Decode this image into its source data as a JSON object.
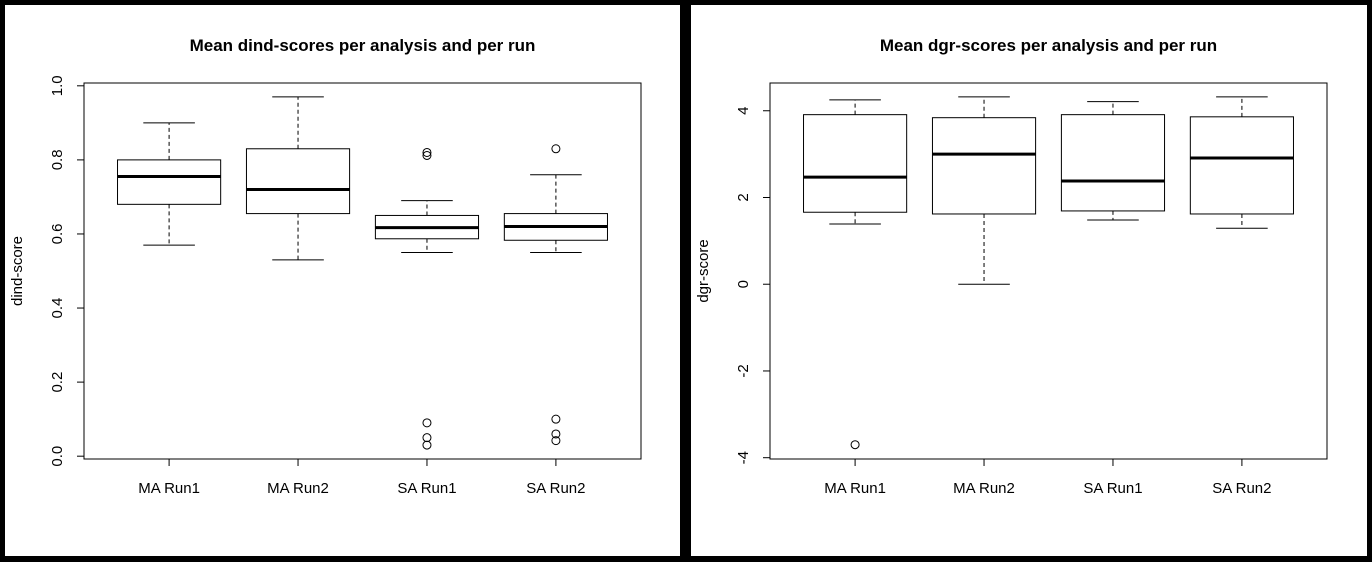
{
  "chart_data": [
    {
      "type": "box",
      "title": "Mean dind-scores per analysis and per run",
      "ylabel": "dind-score",
      "categories": [
        "MA Run1",
        "MA Run2",
        "SA Run1",
        "SA Run2"
      ],
      "boxes": [
        {
          "min": 0.57,
          "q1": 0.68,
          "median": 0.755,
          "q3": 0.8,
          "max": 0.9,
          "outliers": []
        },
        {
          "min": 0.53,
          "q1": 0.655,
          "median": 0.72,
          "q3": 0.83,
          "max": 0.97,
          "outliers": []
        },
        {
          "min": 0.55,
          "q1": 0.587,
          "median": 0.617,
          "q3": 0.65,
          "max": 0.69,
          "outliers": [
            0.82,
            0.812,
            0.09,
            0.05,
            0.03
          ]
        },
        {
          "min": 0.55,
          "q1": 0.583,
          "median": 0.62,
          "q3": 0.655,
          "max": 0.76,
          "outliers": [
            0.83,
            0.1,
            0.06,
            0.042
          ]
        }
      ],
      "ylim": [
        -0.0076,
        1.0076
      ],
      "yticks": [
        {
          "value": 0,
          "label": "0.0"
        },
        0.2,
        0.4,
        0.6,
        0.8,
        {
          "value": 1,
          "label": "1.0"
        }
      ]
    },
    {
      "type": "box",
      "title": "Mean dgr-scores per analysis and per run",
      "ylabel": "dgr-score",
      "categories": [
        "MA Run1",
        "MA Run2",
        "SA Run1",
        "SA Run2"
      ],
      "boxes": [
        {
          "min": 1.39,
          "q1": 1.66,
          "median": 2.47,
          "q3": 3.91,
          "max": 4.25,
          "outliers": [
            -3.7
          ]
        },
        {
          "min": 0,
          "q1": 1.62,
          "median": 3.0,
          "q3": 3.84,
          "max": 4.32,
          "outliers": []
        },
        {
          "min": 1.48,
          "q1": 1.69,
          "median": 2.38,
          "q3": 3.91,
          "max": 4.21,
          "outliers": []
        },
        {
          "min": 1.29,
          "q1": 1.62,
          "median": 2.91,
          "q3": 3.86,
          "max": 4.32,
          "outliers": []
        }
      ],
      "ylim": [
        -4.03,
        4.64
      ],
      "yticks": [
        -4,
        -2,
        0,
        2,
        4
      ]
    }
  ]
}
